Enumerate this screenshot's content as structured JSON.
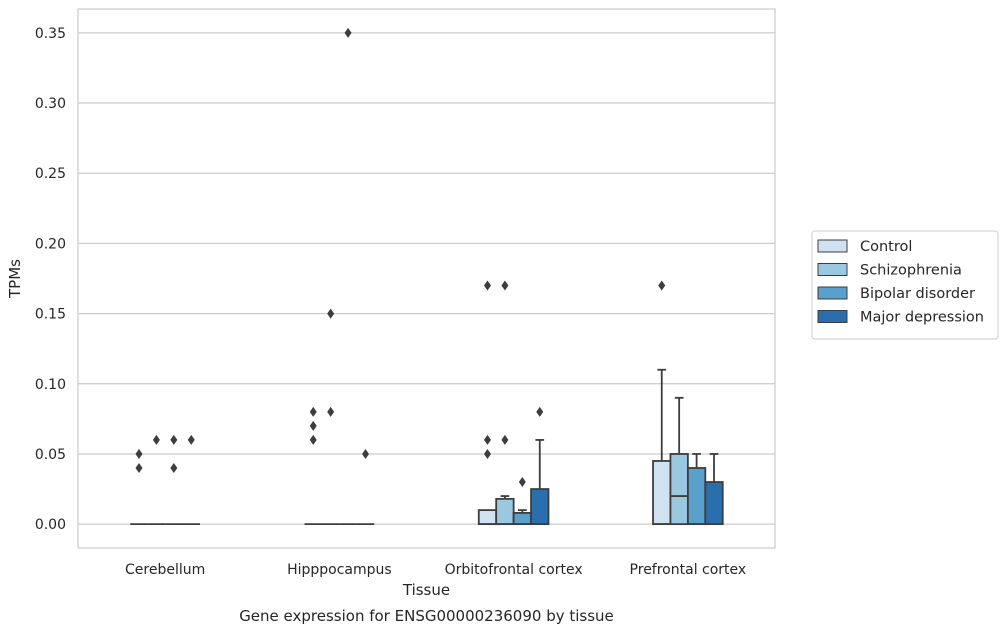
{
  "chart_data": {
    "type": "box",
    "caption": "Gene expression for ENSG00000236090 by tissue",
    "xlabel": "Tissue",
    "ylabel": "TPMs",
    "ylim": [
      -0.017,
      0.367
    ],
    "yticks": [
      0.0,
      0.05,
      0.1,
      0.15,
      0.2,
      0.25,
      0.3,
      0.35
    ],
    "ytick_labels": [
      "0.00",
      "0.05",
      "0.10",
      "0.15",
      "0.20",
      "0.25",
      "0.30",
      "0.35"
    ],
    "grid": "horizontal",
    "legend_position": "right",
    "categories": [
      "Cerebellum",
      "Hipppocampus",
      "Orbitofrontal cortex",
      "Prefrontal cortex"
    ],
    "series": [
      {
        "name": "Control",
        "color": "#d0e1f2",
        "boxes": [
          {
            "q1": 0.0,
            "median": 0.0,
            "q3": 0.0,
            "whisker_low": 0.0,
            "whisker_high": 0.0,
            "outliers": [
              0.04,
              0.05
            ]
          },
          {
            "q1": 0.0,
            "median": 0.0,
            "q3": 0.0,
            "whisker_low": 0.0,
            "whisker_high": 0.0,
            "outliers": [
              0.06,
              0.07,
              0.08
            ]
          },
          {
            "q1": 0.0,
            "median": 0.0,
            "q3": 0.01,
            "whisker_low": 0.0,
            "whisker_high": 0.01,
            "outliers": [
              0.05,
              0.06,
              0.17
            ]
          },
          {
            "q1": 0.0,
            "median": 0.0,
            "q3": 0.045,
            "whisker_low": 0.0,
            "whisker_high": 0.11,
            "outliers": [
              0.17
            ]
          }
        ]
      },
      {
        "name": "Schizophrenia",
        "color": "#9ac8e0",
        "boxes": [
          {
            "q1": 0.0,
            "median": 0.0,
            "q3": 0.0,
            "whisker_low": 0.0,
            "whisker_high": 0.0,
            "outliers": [
              0.06
            ]
          },
          {
            "q1": 0.0,
            "median": 0.0,
            "q3": 0.0,
            "whisker_low": 0.0,
            "whisker_high": 0.0,
            "outliers": [
              0.08,
              0.15
            ]
          },
          {
            "q1": 0.0,
            "median": 0.0,
            "q3": 0.018,
            "whisker_low": 0.0,
            "whisker_high": 0.02,
            "outliers": [
              0.06,
              0.17
            ]
          },
          {
            "q1": 0.0,
            "median": 0.02,
            "q3": 0.05,
            "whisker_low": 0.0,
            "whisker_high": 0.09,
            "outliers": []
          }
        ]
      },
      {
        "name": "Bipolar disorder",
        "color": "#5aa0cd",
        "boxes": [
          {
            "q1": 0.0,
            "median": 0.0,
            "q3": 0.0,
            "whisker_low": 0.0,
            "whisker_high": 0.0,
            "outliers": [
              0.04,
              0.06
            ]
          },
          {
            "q1": 0.0,
            "median": 0.0,
            "q3": 0.0,
            "whisker_low": 0.0,
            "whisker_high": 0.0,
            "outliers": [
              0.35
            ]
          },
          {
            "q1": 0.0,
            "median": 0.0,
            "q3": 0.008,
            "whisker_low": 0.0,
            "whisker_high": 0.01,
            "outliers": [
              0.03
            ]
          },
          {
            "q1": 0.0,
            "median": 0.0,
            "q3": 0.04,
            "whisker_low": 0.0,
            "whisker_high": 0.05,
            "outliers": []
          }
        ]
      },
      {
        "name": "Major depression",
        "color": "#2a6fad",
        "boxes": [
          {
            "q1": 0.0,
            "median": 0.0,
            "q3": 0.0,
            "whisker_low": 0.0,
            "whisker_high": 0.0,
            "outliers": [
              0.06
            ]
          },
          {
            "q1": 0.0,
            "median": 0.0,
            "q3": 0.0,
            "whisker_low": 0.0,
            "whisker_high": 0.0,
            "outliers": [
              0.05
            ]
          },
          {
            "q1": 0.0,
            "median": 0.0,
            "q3": 0.025,
            "whisker_low": 0.0,
            "whisker_high": 0.06,
            "outliers": [
              0.08
            ]
          },
          {
            "q1": 0.0,
            "median": 0.0,
            "q3": 0.03,
            "whisker_low": 0.0,
            "whisker_high": 0.05,
            "outliers": []
          }
        ]
      }
    ]
  }
}
